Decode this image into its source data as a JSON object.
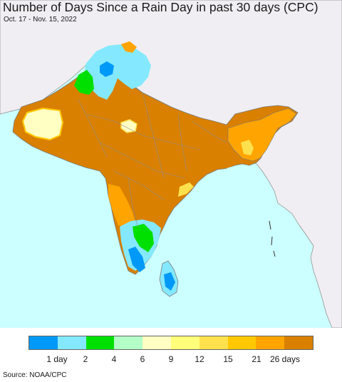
{
  "title": "Number of Days Since a Rain Day in past 30 days (CPC)",
  "subtitle": "Oct. 17 - Nov. 15, 2022",
  "source": "Source: NOAA/CPC",
  "legend": {
    "colors": [
      "#0099f7",
      "#84e9ff",
      "#00e000",
      "#b3ffc7",
      "#ffffc4",
      "#ffff7a",
      "#ffe14d",
      "#ffc800",
      "#ffa400",
      "#d98000"
    ],
    "labels": [
      "1 day",
      "2",
      "4",
      "6",
      "9",
      "12",
      "15",
      "21",
      "26 days"
    ]
  },
  "colors": {
    "ocean": "#ccffff",
    "land_outside": "#f0eef2",
    "border": "#7a7a7a"
  }
}
